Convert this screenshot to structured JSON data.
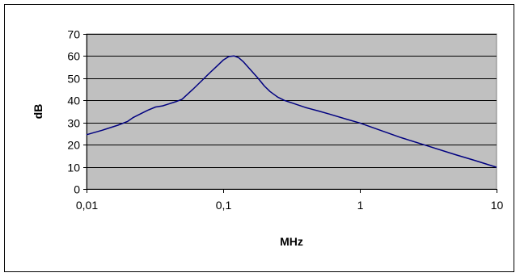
{
  "chart_data": {
    "type": "line",
    "title": "",
    "xlabel": "MHz",
    "ylabel": "dB",
    "x_scale": "log",
    "xlim": [
      0.01,
      10
    ],
    "ylim": [
      0,
      70
    ],
    "grid": true,
    "legend": "none",
    "x_ticks": [
      {
        "value": 0.01,
        "label": "0,01"
      },
      {
        "value": 0.1,
        "label": "0,1"
      },
      {
        "value": 1,
        "label": "1"
      },
      {
        "value": 10,
        "label": "10"
      }
    ],
    "y_ticks": [
      {
        "value": 0,
        "label": "0"
      },
      {
        "value": 10,
        "label": "10"
      },
      {
        "value": 20,
        "label": "20"
      },
      {
        "value": 30,
        "label": "30"
      },
      {
        "value": 40,
        "label": "40"
      },
      {
        "value": 50,
        "label": "50"
      },
      {
        "value": 60,
        "label": "60"
      },
      {
        "value": 70,
        "label": "70"
      }
    ],
    "colors": {
      "plot_background": "#c0c0c0",
      "gridline": "#000000",
      "series_line": "#000080"
    },
    "series": [
      {
        "x": [
          0.01,
          0.013,
          0.017,
          0.02,
          0.022,
          0.025,
          0.028,
          0.032,
          0.036,
          0.04,
          0.045,
          0.05,
          0.06,
          0.07,
          0.08,
          0.09,
          0.1,
          0.11,
          0.12,
          0.13,
          0.14,
          0.16,
          0.18,
          0.2,
          0.22,
          0.25,
          0.28,
          0.32,
          0.4,
          0.5,
          0.6,
          0.8,
          1,
          2,
          3,
          5,
          7,
          10
        ],
        "y": [
          24.5,
          26.5,
          28.8,
          30.5,
          32.3,
          34,
          35.5,
          37,
          37.5,
          38.4,
          39.4,
          40.5,
          45,
          49,
          52.5,
          55.5,
          58.2,
          59.8,
          60.1,
          59.2,
          57.5,
          53.5,
          50,
          46.5,
          44,
          41.5,
          40,
          38.8,
          36.8,
          35.2,
          33.8,
          31.5,
          29.8,
          23.2,
          19.8,
          15.5,
          12.8,
          9.8
        ]
      }
    ]
  }
}
